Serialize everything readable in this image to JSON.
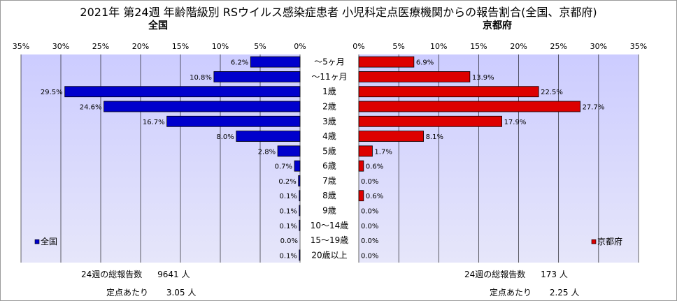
{
  "title": "2021年 第24週 年齢階級別 RSウイルス感染症患者 小児科定点医療機関からの報告割合(全国、京都府)",
  "colors": {
    "national": "#0000cc",
    "kyoto": "#dd0000",
    "plot_bg_top": "#ccccff",
    "plot_bg_bottom": "#e6e6fa"
  },
  "chart_data": [
    {
      "type": "bar",
      "orientation": "horizontal",
      "direction": "right-to-left",
      "title": "全国",
      "xlim": [
        0,
        35
      ],
      "xticks": [
        "35%",
        "30%",
        "25%",
        "20%",
        "15%",
        "10%",
        "5%",
        "0%"
      ],
      "categories": [
        "～5ヶ月",
        "～11ヶ月",
        "1歳",
        "2歳",
        "3歳",
        "4歳",
        "5歳",
        "6歳",
        "7歳",
        "8歳",
        "9歳",
        "10～14歳",
        "15～19歳",
        "20歳以上"
      ],
      "series": [
        {
          "name": "全国",
          "values": [
            6.2,
            10.8,
            29.5,
            24.6,
            16.7,
            8.0,
            2.8,
            0.7,
            0.2,
            0.1,
            0.1,
            0.1,
            0.0,
            0.1
          ]
        }
      ],
      "value_labels": [
        "6.2%",
        "10.8%",
        "29.5%",
        "24.6%",
        "16.7%",
        "8.0%",
        "2.8%",
        "0.7%",
        "0.2%",
        "0.1%",
        "0.1%",
        "0.1%",
        "0.0%",
        "0.1%"
      ],
      "legend": "bottom-left",
      "grid": true
    },
    {
      "type": "bar",
      "orientation": "horizontal",
      "direction": "left-to-right",
      "title": "京都府",
      "xlim": [
        0,
        35
      ],
      "xticks": [
        "0%",
        "5%",
        "10%",
        "15%",
        "20%",
        "25%",
        "30%",
        "35%"
      ],
      "categories": [
        "～5ヶ月",
        "～11ヶ月",
        "1歳",
        "2歳",
        "3歳",
        "4歳",
        "5歳",
        "6歳",
        "7歳",
        "8歳",
        "9歳",
        "10～14歳",
        "15～19歳",
        "20歳以上"
      ],
      "series": [
        {
          "name": "京都府",
          "values": [
            6.9,
            13.9,
            22.5,
            27.7,
            17.9,
            8.1,
            1.7,
            0.6,
            0.0,
            0.6,
            0.0,
            0.0,
            0.0,
            0.0
          ]
        }
      ],
      "value_labels": [
        "6.9%",
        "13.9%",
        "22.5%",
        "27.7%",
        "17.9%",
        "8.1%",
        "1.7%",
        "0.6%",
        "0.0%",
        "0.6%",
        "0.0%",
        "0.0%",
        "0.0%",
        "0.0%"
      ],
      "legend": "bottom-right",
      "grid": true
    }
  ],
  "notes": {
    "national": {
      "total_label": "24週の総報告数",
      "total_value": "9641 人",
      "per_label": "定点あたり",
      "per_value": "3.05 人"
    },
    "kyoto": {
      "total_label": "24週の総報告数",
      "total_value": "173 人",
      "per_label": "定点あたり",
      "per_value": "2.25 人"
    }
  }
}
